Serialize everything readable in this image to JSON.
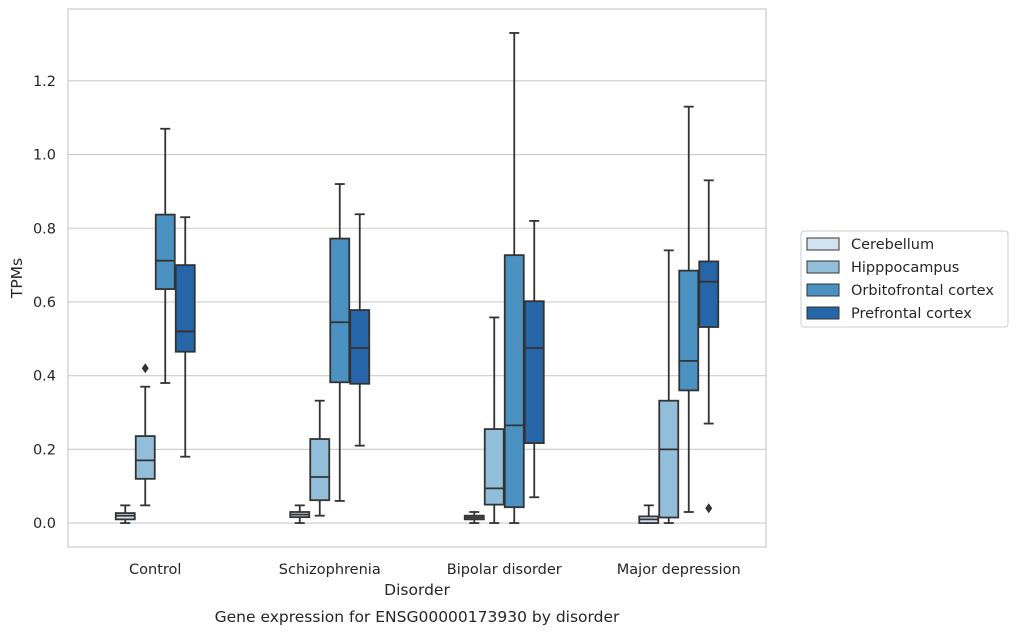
{
  "chart_data": {
    "type": "boxplot",
    "xlabel": "Disorder",
    "ylabel": "TPMs",
    "caption": "Gene expression for ENSG00000173930 by disorder",
    "categories": [
      "Control",
      "Schizophrenia",
      "Bipolar disorder",
      "Major depression"
    ],
    "ylim": [
      -0.065,
      1.395
    ],
    "yticks": [
      0.0,
      0.2,
      0.4,
      0.6,
      0.8,
      1.0,
      1.2
    ],
    "ytick_labels": [
      "0.0",
      "0.2",
      "0.4",
      "0.6",
      "0.8",
      "1.0",
      "1.2"
    ],
    "grid": "horizontal",
    "legend_position": "center-right outside",
    "series": [
      {
        "name": "Cerebellum",
        "color": "#d4e3f2",
        "boxes": [
          {
            "whislo": 0.0,
            "q1": 0.01,
            "med": 0.02,
            "q3": 0.027,
            "whishi": 0.048,
            "fliers": []
          },
          {
            "whislo": 0.0,
            "q1": 0.016,
            "med": 0.023,
            "q3": 0.03,
            "whishi": 0.048,
            "fliers": []
          },
          {
            "whislo": 0.0,
            "q1": 0.01,
            "med": 0.015,
            "q3": 0.02,
            "whishi": 0.03,
            "fliers": []
          },
          {
            "whislo": 0.0,
            "q1": 0.0,
            "med": 0.01,
            "q3": 0.018,
            "whishi": 0.048,
            "fliers": []
          }
        ]
      },
      {
        "name": "Hipppocampus",
        "color": "#93bed9",
        "boxes": [
          {
            "whislo": 0.048,
            "q1": 0.12,
            "med": 0.17,
            "q3": 0.236,
            "whishi": 0.37,
            "fliers": [
              0.42
            ]
          },
          {
            "whislo": 0.02,
            "q1": 0.062,
            "med": 0.125,
            "q3": 0.228,
            "whishi": 0.332,
            "fliers": []
          },
          {
            "whislo": 0.0,
            "q1": 0.05,
            "med": 0.094,
            "q3": 0.255,
            "whishi": 0.558,
            "fliers": []
          },
          {
            "whislo": 0.0,
            "q1": 0.015,
            "med": 0.2,
            "q3": 0.332,
            "whishi": 0.74,
            "fliers": []
          }
        ]
      },
      {
        "name": "Orbitofrontal cortex",
        "color": "#4b92c3",
        "boxes": [
          {
            "whislo": 0.38,
            "q1": 0.635,
            "med": 0.712,
            "q3": 0.837,
            "whishi": 1.07,
            "fliers": []
          },
          {
            "whislo": 0.06,
            "q1": 0.382,
            "med": 0.545,
            "q3": 0.772,
            "whishi": 0.92,
            "fliers": []
          },
          {
            "whislo": 0.0,
            "q1": 0.043,
            "med": 0.265,
            "q3": 0.727,
            "whishi": 1.33,
            "fliers": []
          },
          {
            "whislo": 0.03,
            "q1": 0.36,
            "med": 0.44,
            "q3": 0.685,
            "whishi": 1.13,
            "fliers": []
          }
        ]
      },
      {
        "name": "Prefrontal cortex",
        "color": "#2565a8",
        "boxes": [
          {
            "whislo": 0.18,
            "q1": 0.465,
            "med": 0.52,
            "q3": 0.7,
            "whishi": 0.83,
            "fliers": []
          },
          {
            "whislo": 0.21,
            "q1": 0.378,
            "med": 0.475,
            "q3": 0.578,
            "whishi": 0.838,
            "fliers": []
          },
          {
            "whislo": 0.07,
            "q1": 0.217,
            "med": 0.475,
            "q3": 0.602,
            "whishi": 0.82,
            "fliers": []
          },
          {
            "whislo": 0.27,
            "q1": 0.532,
            "med": 0.655,
            "q3": 0.71,
            "whishi": 0.93,
            "fliers": [
              0.04
            ]
          }
        ]
      }
    ],
    "style": {
      "background": "#ffffff",
      "grid_color": "#cccccc",
      "frame_color": "#cccccc",
      "line_color": "#333333"
    }
  }
}
